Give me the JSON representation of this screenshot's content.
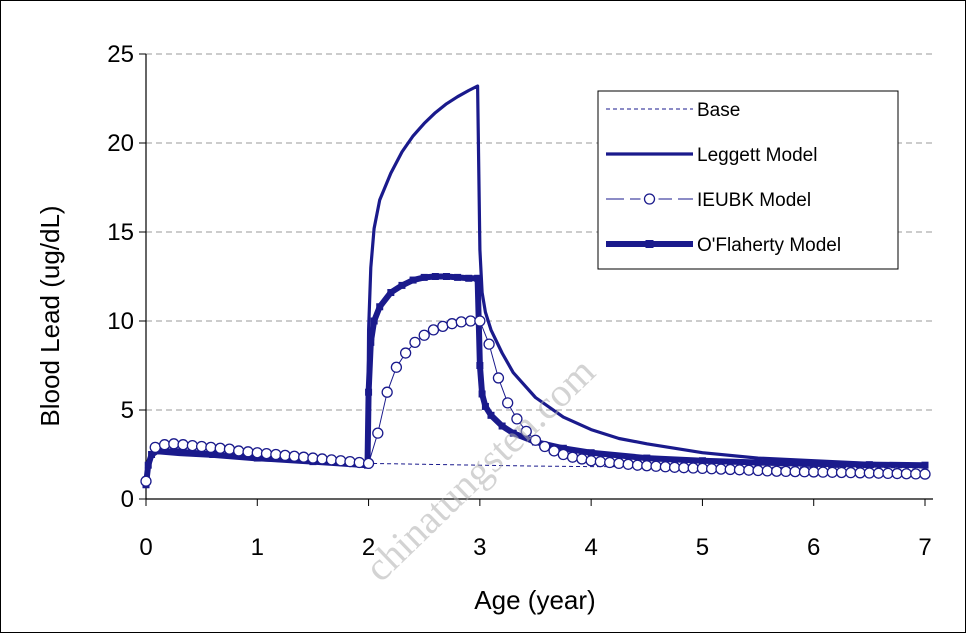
{
  "chart_data": {
    "type": "line",
    "title": "",
    "xlabel": "Age (year)",
    "ylabel": "Blood Lead (ug/dL)",
    "xlim": [
      0,
      7
    ],
    "ylim": [
      0,
      25
    ],
    "xticks": [
      "0",
      "1",
      "2",
      "3",
      "4",
      "5",
      "6",
      "7"
    ],
    "yticks": [
      "0",
      "5",
      "10",
      "15",
      "20",
      "25"
    ],
    "grid": "horizontal dashed",
    "legend_position": "top-right",
    "colors": {
      "series": "#1a1a8c",
      "grid": "#9a9a9a"
    },
    "series": [
      {
        "name": "Base",
        "style": "dashed-thin",
        "x": [
          0,
          0.02,
          0.05,
          0.1,
          0.3,
          0.6,
          1.0,
          1.5,
          2.0,
          2.5,
          3.0,
          3.5,
          4.0,
          5.0,
          6.0,
          7.0
        ],
        "y": [
          0.8,
          1.8,
          2.4,
          2.6,
          2.5,
          2.4,
          2.3,
          2.1,
          2.0,
          1.95,
          1.9,
          1.85,
          1.82,
          1.8,
          1.78,
          1.75
        ]
      },
      {
        "name": "Leggett Model",
        "style": "solid-medium",
        "x": [
          0,
          0.02,
          0.05,
          0.1,
          0.3,
          0.6,
          1.0,
          1.5,
          1.99,
          2.0,
          2.02,
          2.05,
          2.1,
          2.2,
          2.3,
          2.4,
          2.5,
          2.6,
          2.7,
          2.8,
          2.9,
          2.98,
          3.0,
          3.02,
          3.05,
          3.1,
          3.2,
          3.3,
          3.5,
          3.75,
          4.0,
          4.25,
          4.5,
          5.0,
          5.5,
          6.0,
          6.5,
          7.0
        ],
        "y": [
          0.8,
          1.8,
          2.4,
          2.6,
          2.5,
          2.4,
          2.2,
          2.1,
          2.0,
          9.5,
          13.0,
          15.2,
          16.8,
          18.3,
          19.5,
          20.4,
          21.1,
          21.7,
          22.2,
          22.6,
          22.95,
          23.2,
          14.0,
          11.6,
          10.5,
          9.5,
          8.2,
          7.1,
          5.7,
          4.6,
          3.9,
          3.4,
          3.1,
          2.6,
          2.3,
          2.15,
          2.0,
          1.9
        ]
      },
      {
        "name": "IEUBK Model",
        "style": "thin-circles",
        "x": [
          0,
          0.083,
          0.167,
          0.25,
          0.333,
          0.417,
          0.5,
          0.583,
          0.667,
          0.75,
          0.833,
          0.917,
          1.0,
          1.083,
          1.167,
          1.25,
          1.333,
          1.417,
          1.5,
          1.583,
          1.667,
          1.75,
          1.833,
          1.917,
          2.0,
          2.083,
          2.167,
          2.25,
          2.333,
          2.417,
          2.5,
          2.583,
          2.667,
          2.75,
          2.833,
          2.917,
          3.0,
          3.083,
          3.167,
          3.25,
          3.333,
          3.417,
          3.5,
          3.583,
          3.667,
          3.75,
          3.833,
          3.917,
          4.0,
          4.083,
          4.167,
          4.25,
          4.333,
          4.417,
          4.5,
          4.583,
          4.667,
          4.75,
          4.833,
          4.917,
          5.0,
          5.083,
          5.167,
          5.25,
          5.333,
          5.417,
          5.5,
          5.583,
          5.667,
          5.75,
          5.833,
          5.917,
          6.0,
          6.083,
          6.167,
          6.25,
          6.333,
          6.417,
          6.5,
          6.583,
          6.667,
          6.75,
          6.833,
          6.917,
          7.0
        ],
        "y": [
          1.0,
          2.9,
          3.05,
          3.1,
          3.05,
          3.0,
          2.95,
          2.9,
          2.85,
          2.8,
          2.7,
          2.65,
          2.6,
          2.55,
          2.5,
          2.45,
          2.4,
          2.35,
          2.3,
          2.25,
          2.2,
          2.15,
          2.1,
          2.05,
          2.0,
          3.7,
          6.0,
          7.4,
          8.2,
          8.8,
          9.2,
          9.5,
          9.7,
          9.85,
          9.95,
          10.0,
          10.0,
          8.7,
          6.8,
          5.4,
          4.5,
          3.8,
          3.3,
          2.95,
          2.7,
          2.5,
          2.35,
          2.25,
          2.15,
          2.1,
          2.05,
          2.0,
          1.95,
          1.9,
          1.87,
          1.84,
          1.81,
          1.78,
          1.76,
          1.74,
          1.72,
          1.7,
          1.68,
          1.66,
          1.64,
          1.62,
          1.6,
          1.58,
          1.56,
          1.55,
          1.54,
          1.53,
          1.52,
          1.51,
          1.5,
          1.49,
          1.48,
          1.47,
          1.46,
          1.45,
          1.44,
          1.43,
          1.42,
          1.41,
          1.4
        ]
      },
      {
        "name": "O'Flaherty Model",
        "style": "thick-squares",
        "x": [
          0,
          0.02,
          0.05,
          0.1,
          0.3,
          0.6,
          1.0,
          1.5,
          1.99,
          2.0,
          2.02,
          2.05,
          2.1,
          2.2,
          2.3,
          2.4,
          2.5,
          2.6,
          2.7,
          2.8,
          2.9,
          2.98,
          3.0,
          3.02,
          3.05,
          3.1,
          3.2,
          3.3,
          3.5,
          3.75,
          4.0,
          4.5,
          5.0,
          5.5,
          6.0,
          6.5,
          7.0
        ],
        "y": [
          0.8,
          1.9,
          2.5,
          2.7,
          2.65,
          2.5,
          2.3,
          2.1,
          1.9,
          6.0,
          8.8,
          10.0,
          10.8,
          11.6,
          12.0,
          12.3,
          12.45,
          12.5,
          12.5,
          12.45,
          12.4,
          12.4,
          7.5,
          5.9,
          5.2,
          4.7,
          4.1,
          3.7,
          3.2,
          2.85,
          2.6,
          2.3,
          2.15,
          2.05,
          1.97,
          1.93,
          1.9
        ]
      }
    ]
  },
  "watermark": {
    "text": "chinatungsten.com"
  }
}
